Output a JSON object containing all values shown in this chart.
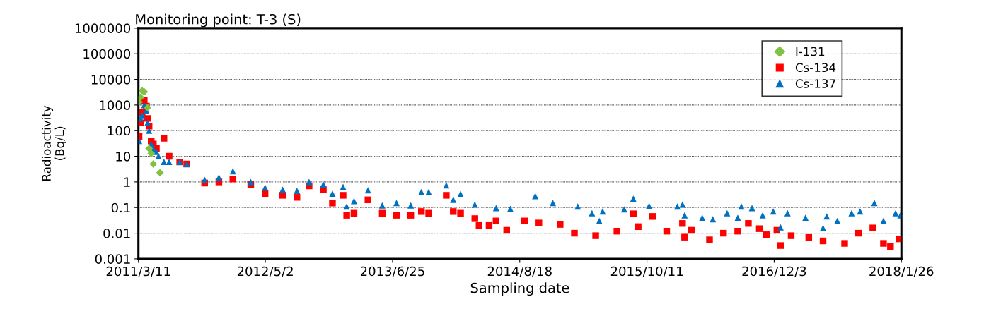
{
  "chart_data": {
    "type": "scatter",
    "title": "Monitoring point: T-3 (S)",
    "xlabel": "Sampling date",
    "ylabel": "Radioactivity\n(Bq/L)",
    "log": "y",
    "grid": "y",
    "legend": "top right",
    "xlim": [
      "2011-03-11",
      "2018-01-26"
    ],
    "xticks": [
      {
        "value": "2011-03-11",
        "label": "2011/3/11"
      },
      {
        "value": "2012-05-02",
        "label": "2012/5/2"
      },
      {
        "value": "2013-06-25",
        "label": "2013/6/25"
      },
      {
        "value": "2014-08-18",
        "label": "2014/8/18"
      },
      {
        "value": "2015-10-11",
        "label": "2015/10/11"
      },
      {
        "value": "2016-12-03",
        "label": "2016/12/3"
      },
      {
        "value": "2018-01-26",
        "label": "2018/1/26"
      }
    ],
    "ylim": [
      0.001,
      1000000
    ],
    "yticks": [
      0.001,
      0.01,
      0.1,
      1,
      10,
      100,
      1000,
      10000,
      100000,
      1000000
    ],
    "series": [
      {
        "name": "I-131",
        "color": "#7fc241",
        "marker": "diamond",
        "x": [
          "2011-03-13",
          "2011-03-18",
          "2011-03-23",
          "2011-03-30",
          "2011-04-10",
          "2011-04-15",
          "2011-04-22",
          "2011-04-29",
          "2011-05-21"
        ],
        "values": [
          1300,
          2000,
          3600,
          3300,
          800,
          20,
          13,
          5,
          2.3
        ]
      },
      {
        "name": "Cs-134",
        "color": "#ff0000",
        "marker": "square",
        "x": [
          "2011-03-13",
          "2011-03-18",
          "2011-03-23",
          "2011-03-30",
          "2011-04-06",
          "2011-04-10",
          "2011-04-15",
          "2011-04-22",
          "2011-04-29",
          "2011-05-09",
          "2011-06-03",
          "2011-06-20",
          "2011-07-25",
          "2011-08-17",
          "2011-10-15",
          "2011-12-01",
          "2012-01-16",
          "2012-03-15",
          "2012-05-01",
          "2012-06-28",
          "2012-08-14",
          "2012-09-23",
          "2012-11-09",
          "2012-12-09",
          "2013-01-13",
          "2013-01-25",
          "2013-02-18",
          "2013-04-05",
          "2013-05-22",
          "2013-07-08",
          "2013-08-24",
          "2013-09-28",
          "2013-10-22",
          "2013-12-19",
          "2014-01-11",
          "2014-02-04",
          "2014-03-23",
          "2014-04-06",
          "2014-05-09",
          "2014-06-01",
          "2014-07-06",
          "2014-09-03",
          "2014-10-20",
          "2014-12-29",
          "2015-02-14",
          "2015-04-25",
          "2015-07-04",
          "2015-08-27",
          "2015-09-12",
          "2015-10-29",
          "2015-12-15",
          "2016-02-05",
          "2016-02-12",
          "2016-03-06",
          "2016-05-04",
          "2016-06-19",
          "2016-08-05",
          "2016-09-09",
          "2016-10-15",
          "2016-11-07",
          "2016-12-12",
          "2016-12-24",
          "2017-01-28",
          "2017-03-27",
          "2017-05-13",
          "2017-07-23",
          "2017-09-07",
          "2017-10-24",
          "2017-11-28",
          "2017-12-21",
          "2018-01-19"
        ],
        "values": [
          60,
          200,
          500,
          1500,
          900,
          300,
          150,
          40,
          30,
          20,
          50,
          10,
          6,
          5,
          0.9,
          1.0,
          1.3,
          0.8,
          0.35,
          0.3,
          0.25,
          0.7,
          0.5,
          0.15,
          0.3,
          0.05,
          0.06,
          0.2,
          0.06,
          0.05,
          0.05,
          0.07,
          0.06,
          0.3,
          0.07,
          0.06,
          0.037,
          0.02,
          0.02,
          0.03,
          0.013,
          0.03,
          0.025,
          0.022,
          0.01,
          0.008,
          0.012,
          0.057,
          0.018,
          0.045,
          0.012,
          0.024,
          0.007,
          0.013,
          0.0055,
          0.01,
          0.012,
          0.024,
          0.015,
          0.0087,
          0.013,
          0.0033,
          0.008,
          0.0068,
          0.005,
          0.004,
          0.01,
          0.016,
          0.004,
          0.003,
          0.006
        ]
      },
      {
        "name": "Cs-137",
        "color": "#0070c0",
        "marker": "triangle",
        "x": [
          "2011-03-13",
          "2011-03-18",
          "2011-03-23",
          "2011-03-30",
          "2011-04-06",
          "2011-04-10",
          "2011-04-15",
          "2011-04-22",
          "2011-04-29",
          "2011-05-09",
          "2011-05-16",
          "2011-06-03",
          "2011-06-20",
          "2011-07-25",
          "2011-08-17",
          "2011-10-15",
          "2011-12-01",
          "2012-01-16",
          "2012-03-15",
          "2012-05-01",
          "2012-06-28",
          "2012-08-14",
          "2012-09-23",
          "2012-11-09",
          "2012-12-09",
          "2013-01-13",
          "2013-01-25",
          "2013-02-18",
          "2013-04-05",
          "2013-05-22",
          "2013-07-08",
          "2013-08-24",
          "2013-09-28",
          "2013-10-22",
          "2013-12-19",
          "2014-01-11",
          "2014-02-04",
          "2014-03-23",
          "2014-06-01",
          "2014-07-18",
          "2014-10-08",
          "2014-12-05",
          "2015-02-25",
          "2015-04-13",
          "2015-05-07",
          "2015-05-18",
          "2015-07-28",
          "2015-08-27",
          "2015-10-18",
          "2016-01-19",
          "2016-02-05",
          "2016-02-12",
          "2016-04-10",
          "2016-05-15",
          "2016-07-01",
          "2016-08-05",
          "2016-08-17",
          "2016-09-21",
          "2016-10-26",
          "2016-11-30",
          "2016-12-24",
          "2017-01-16",
          "2017-03-16",
          "2017-05-13",
          "2017-05-25",
          "2017-06-29",
          "2017-08-15",
          "2017-09-12",
          "2017-10-29",
          "2017-11-28",
          "2018-01-07",
          "2018-01-23"
        ],
        "values": [
          40,
          300,
          400,
          1000,
          600,
          200,
          100,
          30,
          20,
          15,
          10,
          6,
          6,
          6,
          5,
          1.2,
          1.5,
          2.6,
          1.0,
          0.6,
          0.5,
          0.45,
          1.0,
          0.8,
          0.35,
          0.64,
          0.11,
          0.18,
          0.47,
          0.12,
          0.15,
          0.12,
          0.4,
          0.4,
          0.73,
          0.2,
          0.34,
          0.13,
          0.095,
          0.09,
          0.28,
          0.15,
          0.11,
          0.06,
          0.03,
          0.07,
          0.085,
          0.22,
          0.115,
          0.11,
          0.13,
          0.05,
          0.04,
          0.035,
          0.06,
          0.04,
          0.11,
          0.095,
          0.05,
          0.07,
          0.017,
          0.06,
          0.04,
          0.016,
          0.045,
          0.03,
          0.06,
          0.07,
          0.15,
          0.03,
          0.06,
          0.05
        ]
      }
    ]
  }
}
